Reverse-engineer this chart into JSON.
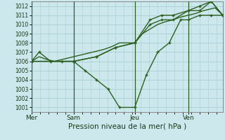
{
  "xlabel": "Pression niveau de la mer( hPa )",
  "background_color": "#cce8ec",
  "grid_color": "#a8cdd4",
  "line_color": "#2d6020",
  "ylim": [
    1000.5,
    1012.5
  ],
  "yticks": [
    1001,
    1002,
    1003,
    1004,
    1005,
    1006,
    1007,
    1008,
    1009,
    1010,
    1011,
    1012
  ],
  "day_labels": [
    "Mer",
    "Sam",
    "Jeu",
    "Ven"
  ],
  "day_positions": [
    0.0,
    0.22,
    0.54,
    0.82
  ],
  "xlim": [
    0.0,
    1.0
  ],
  "lines": [
    {
      "x": [
        0.0,
        0.04,
        0.08,
        0.12,
        0.16,
        0.2,
        0.24,
        0.28,
        0.32,
        0.38,
        0.42,
        0.46,
        0.54,
        0.58,
        0.62,
        0.66,
        0.7,
        0.74,
        0.78,
        0.82,
        0.86,
        0.9,
        0.96,
        1.0
      ],
      "y": [
        1006.0,
        1006.5,
        1006.2,
        1006.0,
        1006.2,
        1006.4,
        1006.6,
        1006.8,
        1007.0,
        1007.3,
        1007.6,
        1008.0,
        1008.0,
        1009.0,
        1009.5,
        1010.0,
        1010.3,
        1010.5,
        1010.8,
        1011.0,
        1011.2,
        1011.5,
        1011.8,
        1011.0
      ],
      "marker": false,
      "lw": 1.0
    },
    {
      "x": [
        0.0,
        0.04,
        0.1,
        0.16,
        0.22,
        0.28,
        0.34,
        0.4,
        0.46,
        0.54,
        0.6,
        0.66,
        0.72,
        0.78,
        0.82,
        0.88,
        0.94,
        1.0
      ],
      "y": [
        1006.0,
        1007.0,
        1006.0,
        1006.0,
        1006.0,
        1005.0,
        1004.0,
        1003.0,
        1001.0,
        1001.0,
        1004.5,
        1007.0,
        1008.0,
        1010.5,
        1010.5,
        1011.0,
        1011.0,
        1011.0
      ],
      "marker": true,
      "lw": 1.0
    },
    {
      "x": [
        0.0,
        0.22,
        0.34,
        0.44,
        0.54,
        0.62,
        0.68,
        0.74,
        0.82,
        0.88,
        0.94,
        1.0
      ],
      "y": [
        1006.0,
        1006.0,
        1006.5,
        1007.5,
        1008.0,
        1010.0,
        1010.5,
        1010.5,
        1011.5,
        1011.5,
        1012.5,
        1011.0
      ],
      "marker": true,
      "lw": 1.0
    },
    {
      "x": [
        0.0,
        0.22,
        0.34,
        0.44,
        0.54,
        0.62,
        0.68,
        0.74,
        0.82,
        0.88,
        0.94,
        1.0
      ],
      "y": [
        1006.0,
        1006.0,
        1006.5,
        1007.5,
        1008.0,
        1010.5,
        1011.0,
        1011.0,
        1011.5,
        1012.0,
        1012.5,
        1011.0
      ],
      "marker": true,
      "lw": 1.0
    }
  ]
}
